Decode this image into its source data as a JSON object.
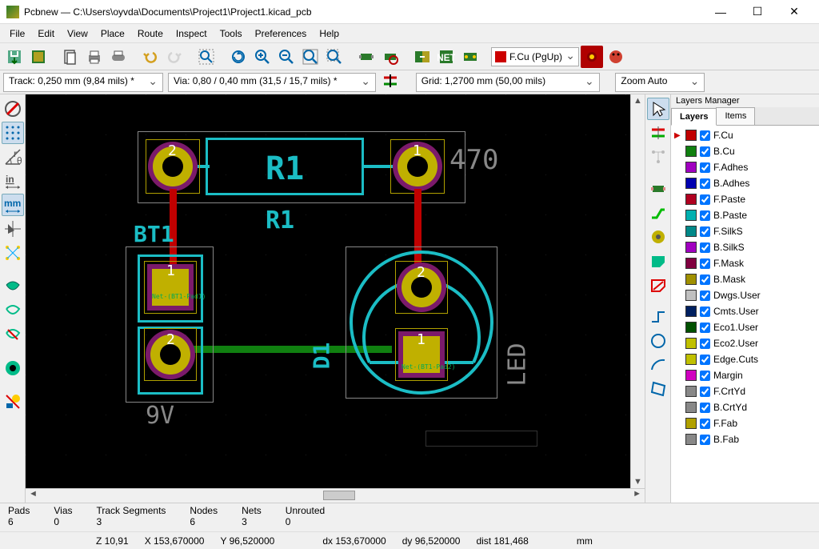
{
  "window": {
    "title": "Pcbnew — C:\\Users\\oyvda\\Documents\\Project1\\Project1.kicad_pcb"
  },
  "menu": [
    "File",
    "Edit",
    "View",
    "Place",
    "Route",
    "Inspect",
    "Tools",
    "Preferences",
    "Help"
  ],
  "toolbar2": {
    "track": "Track: 0,250 mm (9,84 mils) *",
    "via": "Via: 0,80 / 0,40 mm (31,5 / 15,7 mils) *",
    "grid": "Grid: 1,2700 mm (50,00 mils)",
    "zoom": "Zoom Auto"
  },
  "layer_selector": "F.Cu (PgUp)",
  "layers_panel": {
    "title": "Layers Manager",
    "tabs": [
      "Layers",
      "Items"
    ],
    "active_tab": 0,
    "layers": [
      {
        "name": "F.Cu",
        "color": "#c00000",
        "current": true,
        "checked": true
      },
      {
        "name": "B.Cu",
        "color": "#108010",
        "checked": true
      },
      {
        "name": "F.Adhes",
        "color": "#a000c0",
        "checked": true
      },
      {
        "name": "B.Adhes",
        "color": "#0000b0",
        "checked": true
      },
      {
        "name": "F.Paste",
        "color": "#b00020",
        "checked": true
      },
      {
        "name": "B.Paste",
        "color": "#00b0b0",
        "checked": true
      },
      {
        "name": "F.SilkS",
        "color": "#008888",
        "checked": true
      },
      {
        "name": "B.SilkS",
        "color": "#a000c0",
        "checked": true
      },
      {
        "name": "F.Mask",
        "color": "#800040",
        "checked": true
      },
      {
        "name": "B.Mask",
        "color": "#a09000",
        "checked": true
      },
      {
        "name": "Dwgs.User",
        "color": "#c0c0c0",
        "checked": true
      },
      {
        "name": "Cmts.User",
        "color": "#002060",
        "checked": true
      },
      {
        "name": "Eco1.User",
        "color": "#005000",
        "checked": true
      },
      {
        "name": "Eco2.User",
        "color": "#c0c000",
        "checked": true
      },
      {
        "name": "Edge.Cuts",
        "color": "#c0c000",
        "checked": true
      },
      {
        "name": "Margin",
        "color": "#d000c0",
        "checked": true
      },
      {
        "name": "F.CrtYd",
        "color": "#888888",
        "checked": true
      },
      {
        "name": "B.CrtYd",
        "color": "#888888",
        "checked": true
      },
      {
        "name": "F.Fab",
        "color": "#b0a000",
        "checked": true
      },
      {
        "name": "B.Fab",
        "color": "#888888",
        "checked": true
      }
    ]
  },
  "status1": {
    "pads_label": "Pads",
    "pads_val": "6",
    "vias_label": "Vias",
    "vias_val": "0",
    "tracks_label": "Track Segments",
    "tracks_val": "3",
    "nodes_label": "Nodes",
    "nodes_val": "6",
    "nets_label": "Nets",
    "nets_val": "3",
    "unrouted_label": "Unrouted",
    "unrouted_val": "0"
  },
  "status2": {
    "z": "Z 10,91",
    "x": "X 153,670000",
    "y": "Y 96,520000",
    "dx": "dx 153,670000",
    "dy": "dy 96,520000",
    "dist": "dist 181,468",
    "unit": "mm"
  },
  "pcb": {
    "colors": {
      "bg": "#000000",
      "silk": "#1bbdc5",
      "courtyard": "#888888",
      "trace_f": "#c00000",
      "trace_b": "#108010",
      "pad_gold": "#c0b000",
      "pad_mask": "#7b1a6a",
      "drill": "#000000",
      "fab": "#b0a000",
      "value_text": "#888888"
    },
    "components": {
      "R1": {
        "ref": "R1",
        "value": "470"
      },
      "BT1": {
        "ref": "BT1",
        "value": "9V"
      },
      "D1": {
        "ref": "D1",
        "value": "LED"
      }
    }
  }
}
